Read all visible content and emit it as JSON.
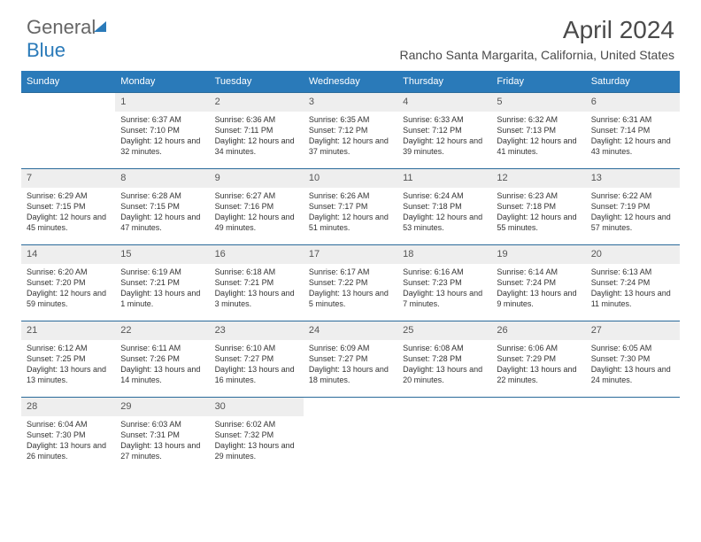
{
  "brand": {
    "word1": "General",
    "word2": "Blue"
  },
  "header": {
    "title": "April 2024",
    "location": "Rancho Santa Margarita, California, United States"
  },
  "style": {
    "header_bg": "#2a7ab9",
    "row_border": "#2a6a9a",
    "daynum_bg": "#eeeeee",
    "text_color": "#333333",
    "title_fontsize": 28,
    "subtitle_fontsize": 14,
    "body_fontsize": 9
  },
  "day_names": [
    "Sunday",
    "Monday",
    "Tuesday",
    "Wednesday",
    "Thursday",
    "Friday",
    "Saturday"
  ],
  "weeks": [
    [
      {
        "num": "",
        "sunrise": "",
        "sunset": "",
        "daylight": ""
      },
      {
        "num": "1",
        "sunrise": "Sunrise: 6:37 AM",
        "sunset": "Sunset: 7:10 PM",
        "daylight": "Daylight: 12 hours and 32 minutes."
      },
      {
        "num": "2",
        "sunrise": "Sunrise: 6:36 AM",
        "sunset": "Sunset: 7:11 PM",
        "daylight": "Daylight: 12 hours and 34 minutes."
      },
      {
        "num": "3",
        "sunrise": "Sunrise: 6:35 AM",
        "sunset": "Sunset: 7:12 PM",
        "daylight": "Daylight: 12 hours and 37 minutes."
      },
      {
        "num": "4",
        "sunrise": "Sunrise: 6:33 AM",
        "sunset": "Sunset: 7:12 PM",
        "daylight": "Daylight: 12 hours and 39 minutes."
      },
      {
        "num": "5",
        "sunrise": "Sunrise: 6:32 AM",
        "sunset": "Sunset: 7:13 PM",
        "daylight": "Daylight: 12 hours and 41 minutes."
      },
      {
        "num": "6",
        "sunrise": "Sunrise: 6:31 AM",
        "sunset": "Sunset: 7:14 PM",
        "daylight": "Daylight: 12 hours and 43 minutes."
      }
    ],
    [
      {
        "num": "7",
        "sunrise": "Sunrise: 6:29 AM",
        "sunset": "Sunset: 7:15 PM",
        "daylight": "Daylight: 12 hours and 45 minutes."
      },
      {
        "num": "8",
        "sunrise": "Sunrise: 6:28 AM",
        "sunset": "Sunset: 7:15 PM",
        "daylight": "Daylight: 12 hours and 47 minutes."
      },
      {
        "num": "9",
        "sunrise": "Sunrise: 6:27 AM",
        "sunset": "Sunset: 7:16 PM",
        "daylight": "Daylight: 12 hours and 49 minutes."
      },
      {
        "num": "10",
        "sunrise": "Sunrise: 6:26 AM",
        "sunset": "Sunset: 7:17 PM",
        "daylight": "Daylight: 12 hours and 51 minutes."
      },
      {
        "num": "11",
        "sunrise": "Sunrise: 6:24 AM",
        "sunset": "Sunset: 7:18 PM",
        "daylight": "Daylight: 12 hours and 53 minutes."
      },
      {
        "num": "12",
        "sunrise": "Sunrise: 6:23 AM",
        "sunset": "Sunset: 7:18 PM",
        "daylight": "Daylight: 12 hours and 55 minutes."
      },
      {
        "num": "13",
        "sunrise": "Sunrise: 6:22 AM",
        "sunset": "Sunset: 7:19 PM",
        "daylight": "Daylight: 12 hours and 57 minutes."
      }
    ],
    [
      {
        "num": "14",
        "sunrise": "Sunrise: 6:20 AM",
        "sunset": "Sunset: 7:20 PM",
        "daylight": "Daylight: 12 hours and 59 minutes."
      },
      {
        "num": "15",
        "sunrise": "Sunrise: 6:19 AM",
        "sunset": "Sunset: 7:21 PM",
        "daylight": "Daylight: 13 hours and 1 minute."
      },
      {
        "num": "16",
        "sunrise": "Sunrise: 6:18 AM",
        "sunset": "Sunset: 7:21 PM",
        "daylight": "Daylight: 13 hours and 3 minutes."
      },
      {
        "num": "17",
        "sunrise": "Sunrise: 6:17 AM",
        "sunset": "Sunset: 7:22 PM",
        "daylight": "Daylight: 13 hours and 5 minutes."
      },
      {
        "num": "18",
        "sunrise": "Sunrise: 6:16 AM",
        "sunset": "Sunset: 7:23 PM",
        "daylight": "Daylight: 13 hours and 7 minutes."
      },
      {
        "num": "19",
        "sunrise": "Sunrise: 6:14 AM",
        "sunset": "Sunset: 7:24 PM",
        "daylight": "Daylight: 13 hours and 9 minutes."
      },
      {
        "num": "20",
        "sunrise": "Sunrise: 6:13 AM",
        "sunset": "Sunset: 7:24 PM",
        "daylight": "Daylight: 13 hours and 11 minutes."
      }
    ],
    [
      {
        "num": "21",
        "sunrise": "Sunrise: 6:12 AM",
        "sunset": "Sunset: 7:25 PM",
        "daylight": "Daylight: 13 hours and 13 minutes."
      },
      {
        "num": "22",
        "sunrise": "Sunrise: 6:11 AM",
        "sunset": "Sunset: 7:26 PM",
        "daylight": "Daylight: 13 hours and 14 minutes."
      },
      {
        "num": "23",
        "sunrise": "Sunrise: 6:10 AM",
        "sunset": "Sunset: 7:27 PM",
        "daylight": "Daylight: 13 hours and 16 minutes."
      },
      {
        "num": "24",
        "sunrise": "Sunrise: 6:09 AM",
        "sunset": "Sunset: 7:27 PM",
        "daylight": "Daylight: 13 hours and 18 minutes."
      },
      {
        "num": "25",
        "sunrise": "Sunrise: 6:08 AM",
        "sunset": "Sunset: 7:28 PM",
        "daylight": "Daylight: 13 hours and 20 minutes."
      },
      {
        "num": "26",
        "sunrise": "Sunrise: 6:06 AM",
        "sunset": "Sunset: 7:29 PM",
        "daylight": "Daylight: 13 hours and 22 minutes."
      },
      {
        "num": "27",
        "sunrise": "Sunrise: 6:05 AM",
        "sunset": "Sunset: 7:30 PM",
        "daylight": "Daylight: 13 hours and 24 minutes."
      }
    ],
    [
      {
        "num": "28",
        "sunrise": "Sunrise: 6:04 AM",
        "sunset": "Sunset: 7:30 PM",
        "daylight": "Daylight: 13 hours and 26 minutes."
      },
      {
        "num": "29",
        "sunrise": "Sunrise: 6:03 AM",
        "sunset": "Sunset: 7:31 PM",
        "daylight": "Daylight: 13 hours and 27 minutes."
      },
      {
        "num": "30",
        "sunrise": "Sunrise: 6:02 AM",
        "sunset": "Sunset: 7:32 PM",
        "daylight": "Daylight: 13 hours and 29 minutes."
      },
      {
        "num": "",
        "sunrise": "",
        "sunset": "",
        "daylight": ""
      },
      {
        "num": "",
        "sunrise": "",
        "sunset": "",
        "daylight": ""
      },
      {
        "num": "",
        "sunrise": "",
        "sunset": "",
        "daylight": ""
      },
      {
        "num": "",
        "sunrise": "",
        "sunset": "",
        "daylight": ""
      }
    ]
  ]
}
